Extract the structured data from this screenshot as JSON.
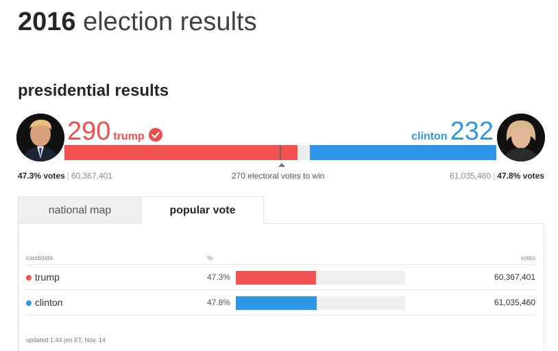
{
  "page": {
    "title_year": "2016",
    "title_rest": "election results",
    "section_title": "presidential results"
  },
  "colors": {
    "red": "#f04e4e",
    "blue": "#2e96e6",
    "bar_bg": "#ececec"
  },
  "electoral": {
    "total": 538,
    "to_win_value": 270,
    "to_win_label": "270 electoral votes to win",
    "left": {
      "name": "trump",
      "electoral_votes": "290",
      "ev_value": 290,
      "badge": "check-icon",
      "vote_pct": "47.3% votes",
      "vote_count": "60,367,401"
    },
    "right": {
      "name": "clinton",
      "electoral_votes": "232",
      "ev_value": 232,
      "vote_pct": "47.8% votes",
      "vote_count": "61,035,460"
    }
  },
  "tabs": {
    "national": "national map",
    "popular": "popular vote"
  },
  "table": {
    "headers": {
      "candidate": "candidate",
      "pct": "%",
      "votes": "votes"
    },
    "rows": [
      {
        "name": "trump",
        "pct": "47.3%",
        "pct_value": 47.3,
        "votes": "60,367,401",
        "color": "#f25252"
      },
      {
        "name": "clinton",
        "pct": "47.8%",
        "pct_value": 47.8,
        "votes": "61,035,460",
        "color": "#2e96e6"
      }
    ],
    "updated": "updated 1:44 pm ET, Nov. 14"
  }
}
